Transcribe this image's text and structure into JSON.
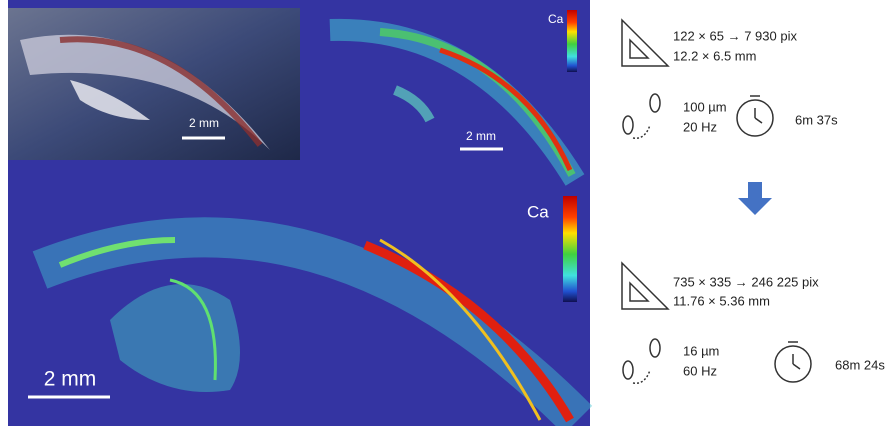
{
  "photo": {
    "scale_bar": "2 mm"
  },
  "map_small": {
    "label": "Ca",
    "scale_bar": "2 mm"
  },
  "map_large": {
    "label": "Ca",
    "scale_bar": "2 mm"
  },
  "scan_before": {
    "dimensions": "122 × 65 → 7 930 pix",
    "size": "12.2 × 6.5 mm",
    "step": "100 µm",
    "frequency": "20 Hz",
    "time": "6m 37s"
  },
  "scan_after": {
    "dimensions": "735 × 335 → 246 225 pix",
    "size": "11.76 × 5.36 mm",
    "step": "16 µm",
    "frequency": "60 Hz",
    "time": "68m 24s"
  }
}
